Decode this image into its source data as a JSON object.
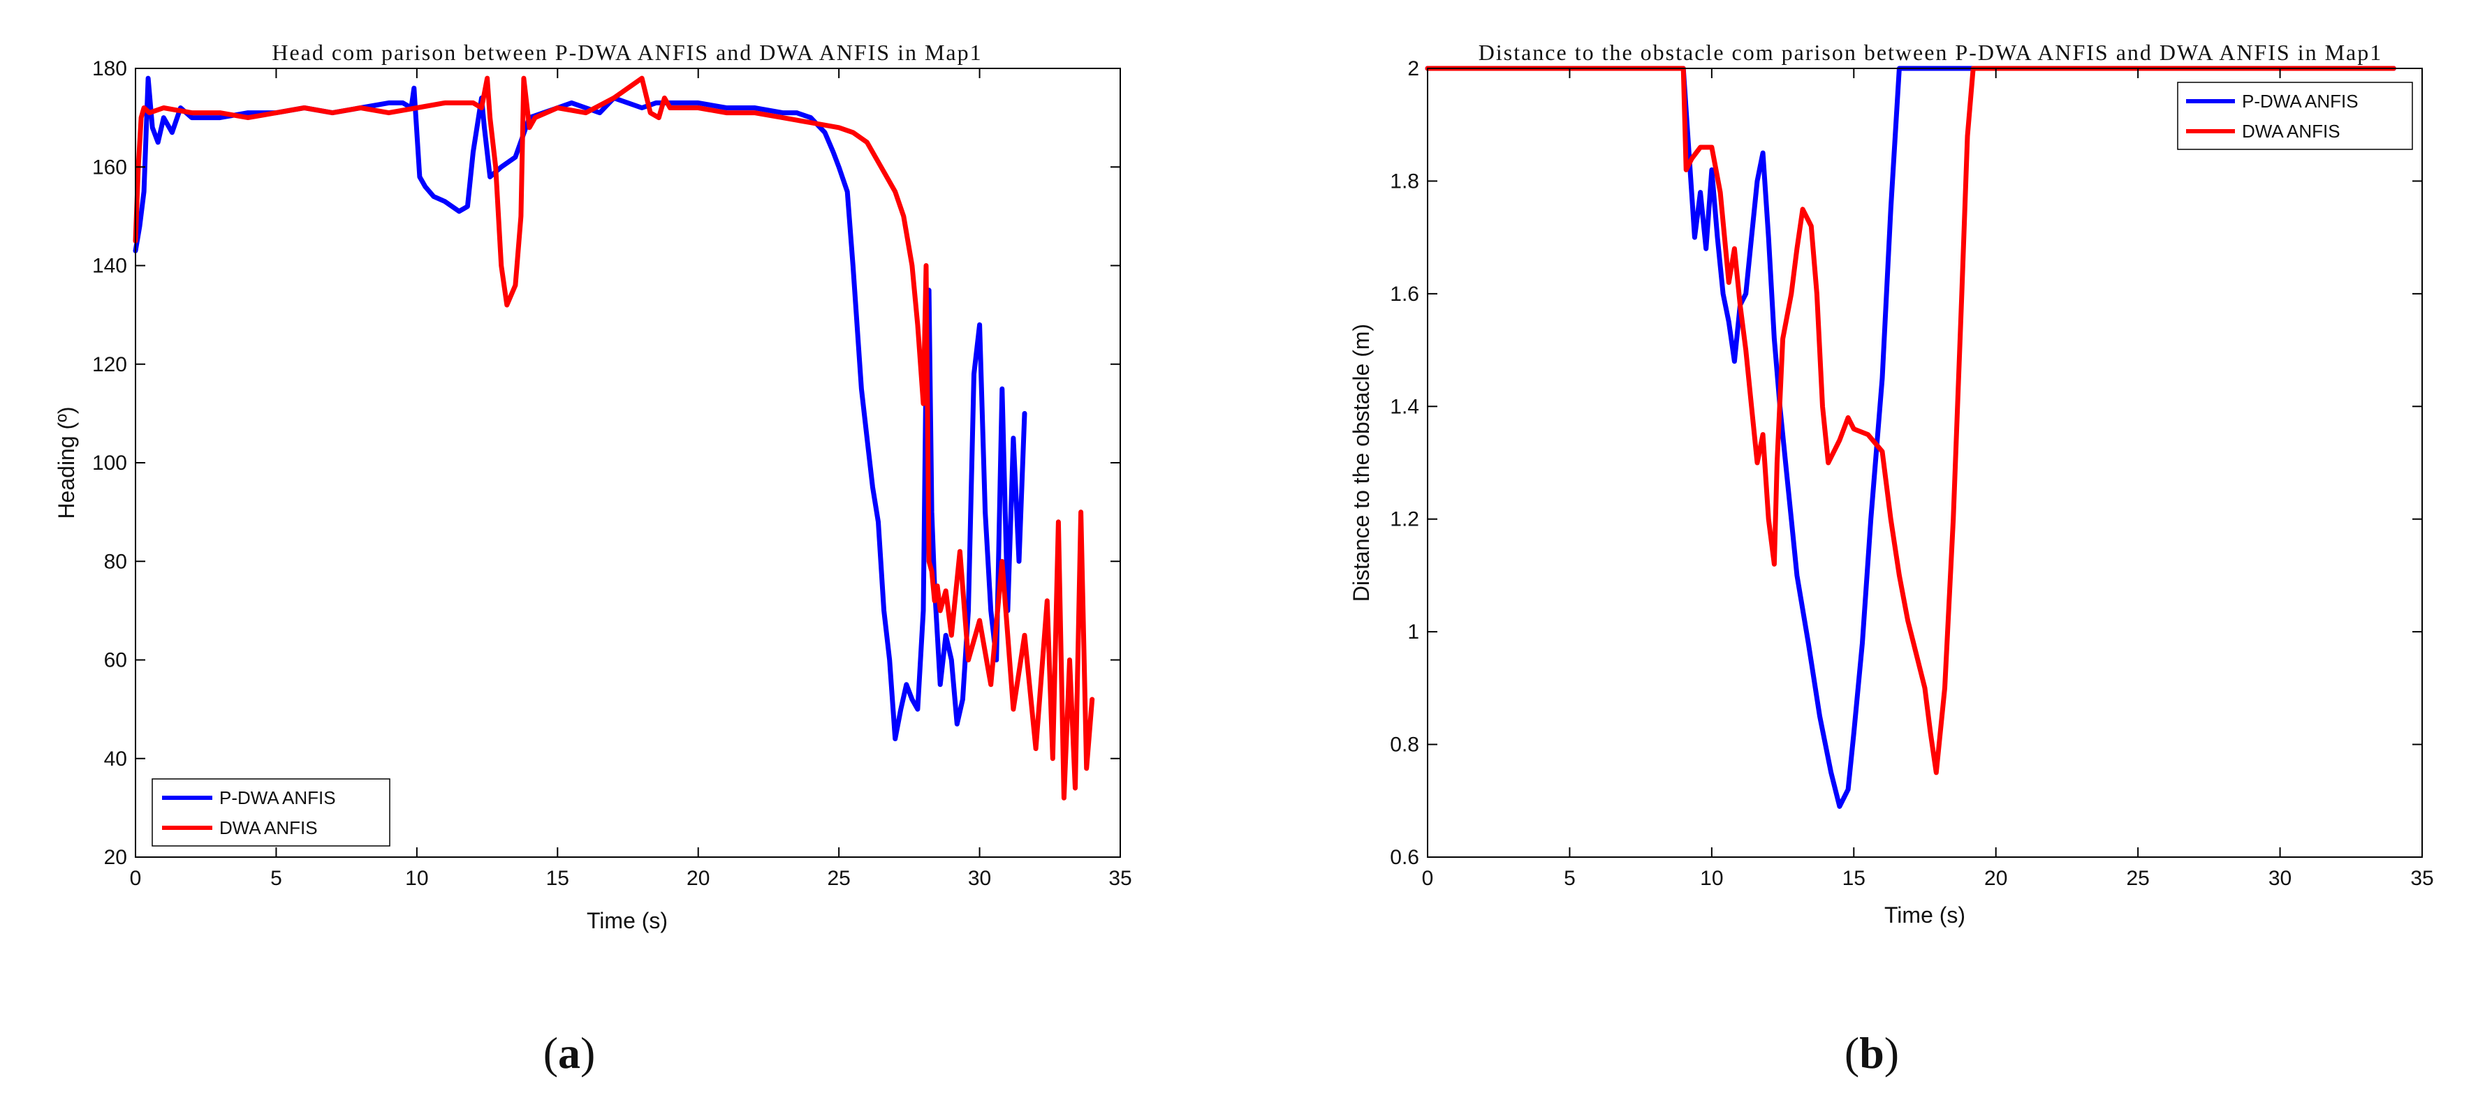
{
  "panels": [
    {
      "label_open": "(",
      "label_letter": "a",
      "label_close": ")"
    },
    {
      "label_open": "(",
      "label_letter": "b",
      "label_close": ")"
    }
  ],
  "chart_data": [
    {
      "type": "line",
      "title": "Head com parison between P-DWA ANFIS and DWA ANFIS in Map1",
      "xlabel": "Time (s)",
      "ylabel": "Heading (º)",
      "xlim": [
        0,
        35
      ],
      "ylim": [
        20,
        180
      ],
      "xticks": [
        0,
        5,
        10,
        15,
        20,
        25,
        30,
        35
      ],
      "yticks": [
        20,
        40,
        60,
        80,
        100,
        120,
        140,
        160,
        180
      ],
      "grid": false,
      "legend": "bottom-left",
      "series": [
        {
          "name": "P-DWA ANFIS",
          "color": "#0000ff",
          "x": [
            0,
            0.15,
            0.3,
            0.45,
            0.6,
            0.8,
            1,
            1.3,
            1.6,
            2,
            3,
            4,
            5,
            6,
            7,
            8,
            9,
            9.5,
            9.8,
            9.9,
            10.1,
            10.3,
            10.6,
            11,
            11.5,
            11.8,
            12,
            12.3,
            12.4,
            12.6,
            13,
            13.5,
            14,
            14.5,
            15,
            15.5,
            16,
            16.5,
            17,
            17.5,
            18,
            18.5,
            19,
            20,
            21,
            22,
            23,
            23.5,
            24,
            24.5,
            24.8,
            25,
            25.3,
            25.5,
            25.8,
            26,
            26.2,
            26.4,
            26.6,
            26.8,
            27,
            27.2,
            27.4,
            27.6,
            27.8,
            28,
            28.1,
            28.2,
            28.3,
            28.4,
            28.6,
            28.8,
            29,
            29.2,
            29.4,
            29.6,
            29.8,
            30,
            30.2,
            30.4,
            30.6,
            30.8,
            31,
            31.2,
            31.4,
            31.6
          ],
          "y": [
            143,
            148,
            155,
            178,
            168,
            165,
            170,
            167,
            172,
            170,
            170,
            171,
            171,
            172,
            171,
            172,
            173,
            173,
            172,
            176,
            158,
            156,
            154,
            153,
            151,
            152,
            163,
            174,
            168,
            158,
            160,
            162,
            170,
            171,
            172,
            173,
            172,
            171,
            174,
            173,
            172,
            173,
            173,
            173,
            172,
            172,
            171,
            171,
            170,
            167,
            163,
            160,
            155,
            140,
            115,
            105,
            95,
            88,
            70,
            60,
            44,
            50,
            55,
            52,
            50,
            70,
            120,
            135,
            90,
            75,
            55,
            65,
            60,
            47,
            52,
            70,
            118,
            128,
            90,
            70,
            60,
            115,
            70,
            105,
            80,
            110
          ]
        },
        {
          "name": "DWA ANFIS",
          "color": "#ff0000",
          "x": [
            0,
            0.1,
            0.2,
            0.3,
            0.5,
            1,
            2,
            3,
            4,
            5,
            6,
            7,
            8,
            9,
            10,
            11,
            12,
            12.3,
            12.5,
            12.6,
            12.8,
            13,
            13.2,
            13.5,
            13.7,
            13.8,
            14,
            14.2,
            15,
            16,
            17,
            17.5,
            18,
            18.3,
            18.6,
            18.8,
            19,
            20,
            21,
            22,
            23,
            24,
            25,
            25.5,
            26,
            26.5,
            27,
            27.3,
            27.6,
            27.8,
            28,
            28.1,
            28.2,
            28.3,
            28.4,
            28.5,
            28.6,
            28.8,
            29,
            29.3,
            29.6,
            30,
            30.4,
            30.8,
            31.2,
            31.6,
            32,
            32.4,
            32.6,
            32.8,
            33,
            33.2,
            33.4,
            33.6,
            33.8,
            34
          ],
          "y": [
            145,
            160,
            170,
            172,
            171,
            172,
            171,
            171,
            170,
            171,
            172,
            171,
            172,
            171,
            172,
            173,
            173,
            172,
            178,
            170,
            160,
            140,
            132,
            136,
            150,
            178,
            168,
            170,
            172,
            171,
            174,
            176,
            178,
            171,
            170,
            174,
            172,
            172,
            171,
            171,
            170,
            169,
            168,
            167,
            165,
            160,
            155,
            150,
            140,
            128,
            112,
            140,
            80,
            78,
            72,
            75,
            70,
            74,
            65,
            82,
            60,
            68,
            55,
            80,
            50,
            65,
            42,
            72,
            40,
            88,
            32,
            60,
            34,
            90,
            38,
            52
          ]
        }
      ]
    },
    {
      "type": "line",
      "title": "Distance to the obstacle com parison between P-DWA ANFIS and DWA ANFIS in Map1",
      "xlabel": "Time (s)",
      "ylabel": "Distance to the obstacle (m)",
      "xlim": [
        0,
        35
      ],
      "ylim": [
        0.6,
        2
      ],
      "xticks": [
        0,
        5,
        10,
        15,
        20,
        25,
        30,
        35
      ],
      "yticks": [
        0.6,
        0.8,
        1,
        1.2,
        1.4,
        1.6,
        1.8,
        2
      ],
      "ytick_labels": [
        "0.6",
        "0.8",
        "1",
        "1.2",
        "1.4",
        "1.6",
        "1.8",
        "2"
      ],
      "grid": false,
      "legend": "top-right",
      "series": [
        {
          "name": "P-DWA ANFIS",
          "color": "#0000ff",
          "x": [
            0,
            9,
            9.2,
            9.4,
            9.6,
            9.8,
            10,
            10.2,
            10.4,
            10.6,
            10.8,
            11,
            11.2,
            11.4,
            11.6,
            11.8,
            12,
            12.2,
            12.4,
            12.6,
            12.8,
            13,
            13.4,
            13.8,
            14.2,
            14.5,
            14.8,
            15,
            15.3,
            15.6,
            16,
            16.3,
            16.6,
            17,
            20,
            25,
            30,
            34
          ],
          "y": [
            2,
            2,
            1.85,
            1.7,
            1.78,
            1.68,
            1.82,
            1.7,
            1.6,
            1.55,
            1.48,
            1.58,
            1.6,
            1.7,
            1.8,
            1.85,
            1.7,
            1.52,
            1.4,
            1.3,
            1.2,
            1.1,
            0.98,
            0.85,
            0.75,
            0.69,
            0.72,
            0.82,
            0.98,
            1.2,
            1.45,
            1.75,
            2,
            2,
            2,
            2,
            2,
            2
          ]
        },
        {
          "name": "DWA ANFIS",
          "color": "#ff0000",
          "x": [
            0,
            9,
            9.1,
            9.3,
            9.6,
            10,
            10.3,
            10.6,
            10.8,
            11,
            11.2,
            11.4,
            11.6,
            11.8,
            12,
            12.2,
            12.3,
            12.5,
            12.8,
            13,
            13.2,
            13.5,
            13.7,
            13.9,
            14.1,
            14.3,
            14.5,
            14.8,
            15,
            15.5,
            16,
            16.3,
            16.6,
            16.9,
            17.2,
            17.5,
            17.7,
            17.9,
            18.2,
            18.5,
            18.8,
            19,
            19.2,
            20,
            25,
            30,
            34
          ],
          "y": [
            2,
            2,
            1.82,
            1.84,
            1.86,
            1.86,
            1.78,
            1.62,
            1.68,
            1.58,
            1.5,
            1.4,
            1.3,
            1.35,
            1.2,
            1.12,
            1.3,
            1.52,
            1.6,
            1.68,
            1.75,
            1.72,
            1.6,
            1.4,
            1.3,
            1.32,
            1.34,
            1.38,
            1.36,
            1.35,
            1.32,
            1.2,
            1.1,
            1.02,
            0.96,
            0.9,
            0.82,
            0.75,
            0.9,
            1.2,
            1.6,
            1.88,
            2,
            2,
            2,
            2,
            2
          ]
        }
      ]
    }
  ]
}
